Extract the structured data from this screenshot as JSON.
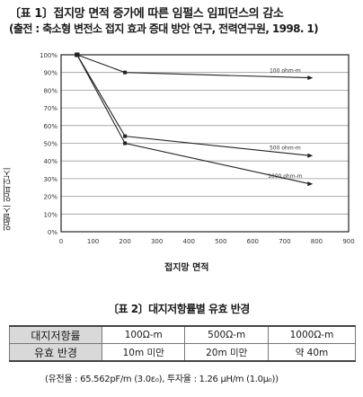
{
  "header": {
    "title_line1": "〔표 1〕접지망 면적 증가에 따른 임펄스 임피던스의 감소",
    "title_line2": "(출전 : 축소형 변전소 접지 효과 증대 방안 연구, 전력연구원, 1998. 1)"
  },
  "chart_data": {
    "type": "line",
    "xlabel": "접지망 면적",
    "ylabel": "임펄스 임피던스",
    "xlim": [
      0,
      900
    ],
    "ylim": [
      0,
      100
    ],
    "x_ticks": [
      0,
      100,
      200,
      300,
      400,
      500,
      600,
      700,
      800,
      900
    ],
    "y_ticks": [
      "0%",
      "10%",
      "20%",
      "30%",
      "40%",
      "50%",
      "60%",
      "70%",
      "80%",
      "90%",
      "100%"
    ],
    "grid": true,
    "series": [
      {
        "name": "100 ohm-m",
        "x": [
          50,
          200,
          780
        ],
        "y": [
          100,
          90,
          87
        ]
      },
      {
        "name": "500 ohm-m",
        "x": [
          50,
          200,
          780
        ],
        "y": [
          100,
          54,
          43
        ]
      },
      {
        "name": "1000 ohm-m",
        "x": [
          50,
          200,
          780
        ],
        "y": [
          100,
          50,
          27
        ]
      }
    ]
  },
  "table2": {
    "title": "〔표 2〕대지저항률별 유효 반경",
    "rows": [
      {
        "header": "대지저항률",
        "cells": [
          "100Ω-m",
          "500Ω-m",
          "1000Ω-m"
        ]
      },
      {
        "header": "유효 반경",
        "cells": [
          "10m 미만",
          "20m 미만",
          "약 40m"
        ]
      }
    ]
  },
  "footnote": "(유전율 : 65.562pF/m (3.0ε₀),   투자율 : 1.26 μH/m (1.0μ₀))"
}
